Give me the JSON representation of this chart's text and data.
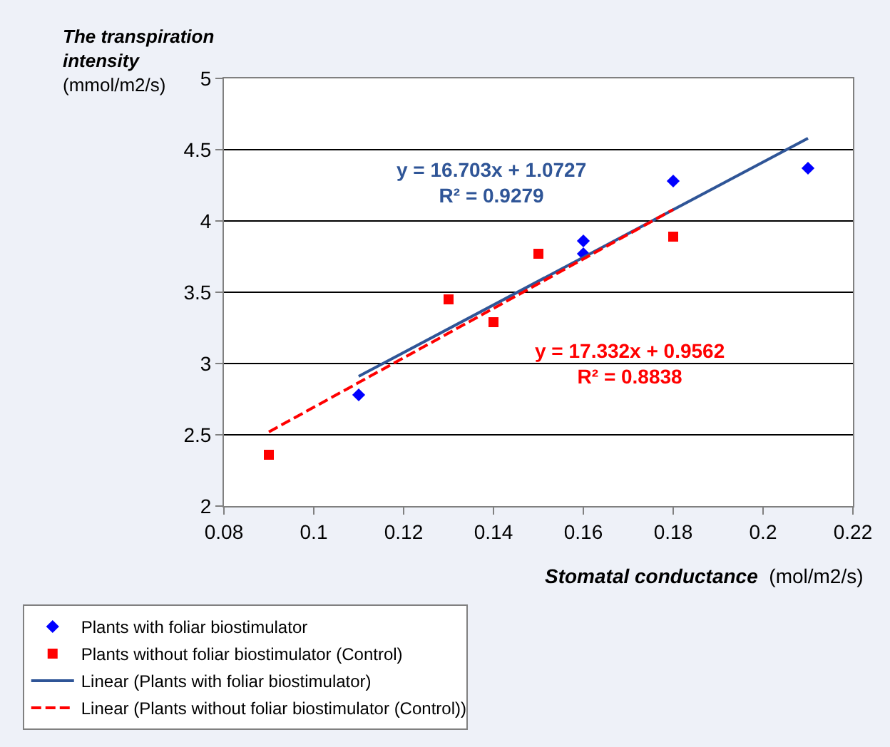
{
  "chart_data": {
    "type": "scatter",
    "xlabel": "Stomatal conductance (mol/m2/s)",
    "ylabel": "The transpiration intensity (mmol/m2/s)",
    "xlim": [
      0.08,
      0.22
    ],
    "xticks": [
      0.08,
      0.1,
      0.12,
      0.14,
      0.16,
      0.18,
      0.2,
      0.22
    ],
    "ylim": [
      2,
      5
    ],
    "yticks": [
      2,
      2.5,
      3,
      3.5,
      4,
      4.5,
      5
    ],
    "grid": "y",
    "legend": "bottom",
    "series": [
      {
        "name": "Plants with foliar biostimulator",
        "marker": "diamond",
        "color": "#0000ff",
        "x": [
          0.11,
          0.16,
          0.16,
          0.18,
          0.21
        ],
        "values": [
          2.78,
          3.86,
          3.77,
          4.28,
          4.37
        ]
      },
      {
        "name": "Plants without foliar biostimulator (Control)",
        "marker": "square",
        "color": "#ff0000",
        "x": [
          0.09,
          0.13,
          0.14,
          0.15,
          0.18
        ],
        "values": [
          2.36,
          3.45,
          3.29,
          3.77,
          3.89
        ]
      },
      {
        "name": "Linear (Plants with foliar biostimulator)",
        "type": "line",
        "line_style": "solid",
        "color": "#2f5597",
        "x": [
          0.11,
          0.21
        ],
        "values": [
          2.91,
          4.58
        ]
      },
      {
        "name": "Linear (Plants without foliar biostimulator (Control))",
        "type": "line",
        "line_style": "dashed",
        "color": "#ff0000",
        "x": [
          0.09,
          0.18
        ],
        "values": [
          2.52,
          4.08
        ]
      }
    ],
    "annotations": [
      "y = 16.703x + 1.0727\nR² = 0.9279",
      "y = 17.332x + 0.9562\nR² = 0.8838"
    ]
  }
}
